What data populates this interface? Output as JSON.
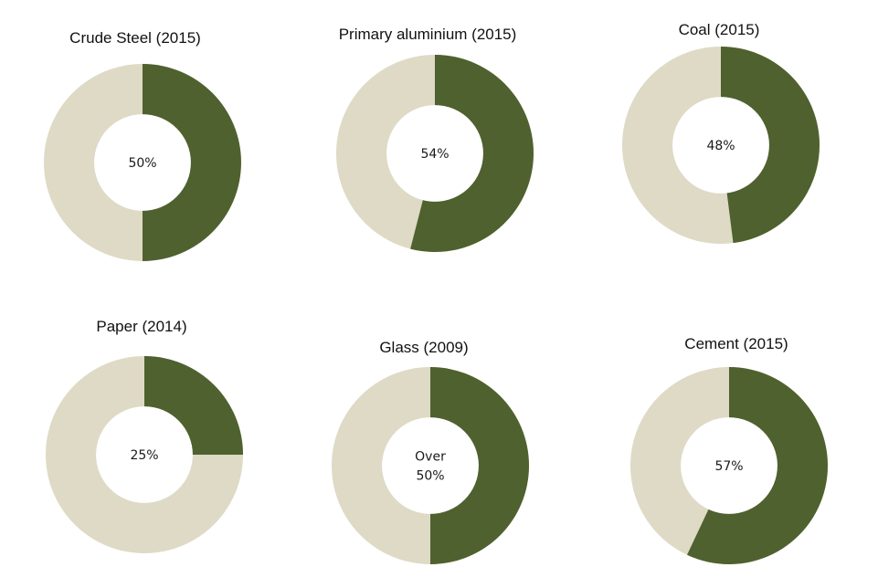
{
  "chart_data": [
    {
      "type": "pie",
      "title": "Crude Steel (2015)",
      "center_label": [
        "50%"
      ],
      "value_percent": 50,
      "colors": {
        "share": "#4f612e",
        "rest": "#dedac5",
        "hole": "#ffffff"
      }
    },
    {
      "type": "pie",
      "title": "Primary aluminium (2015)",
      "center_label": [
        "54%"
      ],
      "value_percent": 54,
      "colors": {
        "share": "#4f612e",
        "rest": "#dedac5",
        "hole": "#ffffff"
      }
    },
    {
      "type": "pie",
      "title": "Coal (2015)",
      "center_label": [
        "48%"
      ],
      "value_percent": 48,
      "colors": {
        "share": "#4f612e",
        "rest": "#dedac5",
        "hole": "#ffffff"
      }
    },
    {
      "type": "pie",
      "title": "Paper (2014)",
      "center_label": [
        "25%"
      ],
      "value_percent": 25,
      "colors": {
        "share": "#4f612e",
        "rest": "#dedac5",
        "hole": "#ffffff"
      }
    },
    {
      "type": "pie",
      "title": "Glass (2009)",
      "center_label": [
        "Over",
        "50%"
      ],
      "value_percent": 50,
      "colors": {
        "share": "#4f612e",
        "rest": "#dedac5",
        "hole": "#ffffff"
      }
    },
    {
      "type": "pie",
      "title": "Cement (2015)",
      "center_label": [
        "57%"
      ],
      "value_percent": 57,
      "colors": {
        "share": "#4f612e",
        "rest": "#dedac5",
        "hole": "#ffffff"
      }
    }
  ]
}
